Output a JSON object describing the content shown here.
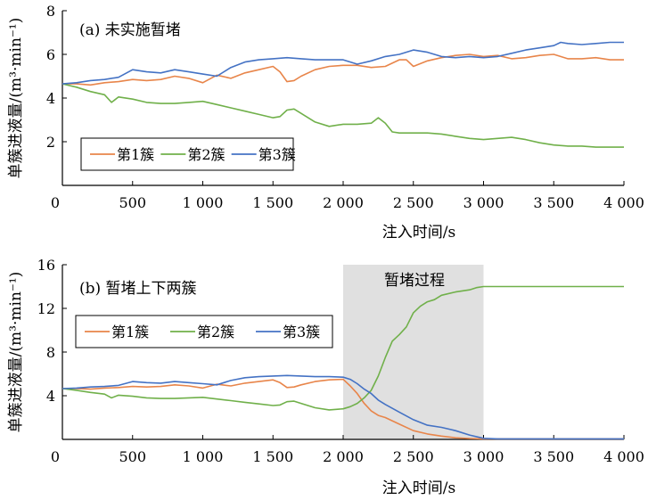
{
  "chart_data": [
    {
      "type": "line",
      "title": "(a) 未实施暂堵",
      "xlabel": "注入时间/s",
      "ylabel": "单簇进液量/(m³·min⁻¹)",
      "xlim": [
        0,
        4000
      ],
      "ylim": [
        0,
        8
      ],
      "xticks": [
        0,
        500,
        1000,
        1500,
        2000,
        2500,
        3000,
        3500,
        4000
      ],
      "xtick_labels": [
        "0",
        "500",
        "1 000",
        "1 500",
        "2 000",
        "2 500",
        "3 000",
        "3 500",
        "4 000"
      ],
      "yticks": [
        0,
        2,
        4,
        6,
        8
      ],
      "ytick_labels": [
        "0",
        "2",
        "4",
        "6",
        "8"
      ],
      "grid": false,
      "legend_position": "bottom-left",
      "colors": {
        "第1簇": "#e8854a",
        "第2簇": "#70b04a",
        "第3簇": "#4472c4"
      },
      "series": [
        {
          "name": "第1簇",
          "x": [
            0,
            100,
            200,
            300,
            400,
            500,
            600,
            700,
            800,
            900,
            1000,
            1100,
            1200,
            1300,
            1400,
            1500,
            1550,
            1600,
            1650,
            1700,
            1800,
            1900,
            2000,
            2100,
            2200,
            2300,
            2400,
            2450,
            2500,
            2600,
            2700,
            2800,
            2900,
            3000,
            3100,
            3200,
            3300,
            3400,
            3500,
            3600,
            3700,
            3800,
            3900,
            4000
          ],
          "y": [
            4.65,
            4.65,
            4.6,
            4.7,
            4.75,
            4.85,
            4.8,
            4.85,
            5.0,
            4.9,
            4.7,
            5.05,
            4.9,
            5.15,
            5.3,
            5.45,
            5.2,
            4.75,
            4.8,
            5.0,
            5.3,
            5.45,
            5.5,
            5.5,
            5.4,
            5.45,
            5.75,
            5.75,
            5.45,
            5.7,
            5.85,
            5.95,
            6.0,
            5.9,
            5.95,
            5.8,
            5.85,
            5.95,
            6.0,
            5.8,
            5.8,
            5.85,
            5.75,
            5.75
          ]
        },
        {
          "name": "第2簇",
          "x": [
            0,
            100,
            200,
            300,
            350,
            400,
            500,
            600,
            700,
            800,
            900,
            1000,
            1100,
            1200,
            1300,
            1400,
            1500,
            1550,
            1600,
            1650,
            1700,
            1800,
            1900,
            2000,
            2100,
            2200,
            2250,
            2300,
            2350,
            2400,
            2500,
            2600,
            2700,
            2800,
            2900,
            3000,
            3100,
            3200,
            3300,
            3400,
            3500,
            3600,
            3700,
            3800,
            3900,
            4000
          ],
          "y": [
            4.65,
            4.5,
            4.3,
            4.15,
            3.8,
            4.05,
            3.95,
            3.8,
            3.75,
            3.75,
            3.8,
            3.85,
            3.7,
            3.55,
            3.4,
            3.25,
            3.1,
            3.15,
            3.45,
            3.5,
            3.3,
            2.9,
            2.7,
            2.8,
            2.8,
            2.85,
            3.1,
            2.85,
            2.45,
            2.4,
            2.4,
            2.4,
            2.35,
            2.25,
            2.15,
            2.1,
            2.15,
            2.2,
            2.1,
            1.95,
            1.85,
            1.8,
            1.8,
            1.75,
            1.75,
            1.75
          ]
        },
        {
          "name": "第3簇",
          "x": [
            0,
            100,
            200,
            300,
            400,
            500,
            600,
            700,
            800,
            900,
            1000,
            1100,
            1200,
            1300,
            1400,
            1500,
            1600,
            1700,
            1800,
            1900,
            2000,
            2100,
            2200,
            2300,
            2400,
            2500,
            2600,
            2700,
            2800,
            2900,
            3000,
            3100,
            3200,
            3300,
            3400,
            3500,
            3550,
            3600,
            3700,
            3800,
            3900,
            4000
          ],
          "y": [
            4.65,
            4.7,
            4.8,
            4.85,
            4.95,
            5.3,
            5.2,
            5.15,
            5.3,
            5.2,
            5.1,
            5.0,
            5.4,
            5.65,
            5.75,
            5.8,
            5.85,
            5.8,
            5.75,
            5.75,
            5.75,
            5.55,
            5.7,
            5.9,
            6.0,
            6.2,
            6.1,
            5.9,
            5.85,
            5.9,
            5.85,
            5.9,
            6.05,
            6.2,
            6.3,
            6.4,
            6.55,
            6.5,
            6.45,
            6.5,
            6.55,
            6.55
          ]
        }
      ]
    },
    {
      "type": "line",
      "title": "(b) 暂堵上下两簇",
      "annotation": "暂堵过程",
      "shaded_range": [
        2000,
        3000
      ],
      "xlabel": "注入时间/s",
      "ylabel": "单簇进液量/(m³·min⁻¹)",
      "xlim": [
        0,
        4000
      ],
      "ylim": [
        0,
        16
      ],
      "xticks": [
        0,
        500,
        1000,
        1500,
        2000,
        2500,
        3000,
        3500,
        4000
      ],
      "xtick_labels": [
        "0",
        "500",
        "1 000",
        "1 500",
        "2 000",
        "2 500",
        "3 000",
        "3 500",
        "4 000"
      ],
      "yticks": [
        0,
        4,
        8,
        12,
        16
      ],
      "ytick_labels": [
        "0",
        "4",
        "8",
        "12",
        "16"
      ],
      "grid": false,
      "legend_position": "top-left",
      "colors": {
        "第1簇": "#e8854a",
        "第2簇": "#70b04a",
        "第3簇": "#4472c4",
        "shade": "#e0e0e0"
      },
      "series": [
        {
          "name": "第1簇",
          "x": [
            0,
            100,
            200,
            300,
            400,
            500,
            600,
            700,
            800,
            900,
            1000,
            1100,
            1200,
            1300,
            1400,
            1500,
            1550,
            1600,
            1650,
            1700,
            1800,
            1900,
            2000,
            2050,
            2100,
            2150,
            2200,
            2250,
            2300,
            2400,
            2500,
            2600,
            2700,
            2800,
            2900,
            3000,
            3100,
            3500,
            4000
          ],
          "y": [
            4.65,
            4.65,
            4.6,
            4.7,
            4.75,
            4.85,
            4.8,
            4.85,
            5.0,
            4.9,
            4.7,
            5.05,
            4.9,
            5.15,
            5.3,
            5.45,
            5.2,
            4.75,
            4.8,
            5.0,
            5.3,
            5.45,
            5.5,
            4.9,
            4.2,
            3.3,
            2.6,
            2.2,
            2.0,
            1.4,
            0.8,
            0.5,
            0.3,
            0.15,
            0.08,
            0.05,
            0.05,
            0.05,
            0.05
          ]
        },
        {
          "name": "第2簇",
          "x": [
            0,
            100,
            200,
            300,
            350,
            400,
            500,
            600,
            700,
            800,
            900,
            1000,
            1100,
            1200,
            1300,
            1400,
            1500,
            1550,
            1600,
            1650,
            1700,
            1800,
            1900,
            2000,
            2050,
            2100,
            2150,
            2200,
            2250,
            2300,
            2350,
            2400,
            2450,
            2500,
            2550,
            2600,
            2650,
            2700,
            2800,
            2900,
            2950,
            3000,
            3500,
            4000
          ],
          "y": [
            4.65,
            4.5,
            4.3,
            4.15,
            3.8,
            4.05,
            3.95,
            3.8,
            3.75,
            3.75,
            3.8,
            3.85,
            3.7,
            3.55,
            3.4,
            3.25,
            3.1,
            3.15,
            3.45,
            3.5,
            3.3,
            2.9,
            2.7,
            2.8,
            3.0,
            3.3,
            3.8,
            4.5,
            5.8,
            7.5,
            9.0,
            9.6,
            10.3,
            11.6,
            12.2,
            12.6,
            12.8,
            13.2,
            13.5,
            13.7,
            13.9,
            14.0,
            14.0,
            14.0
          ]
        },
        {
          "name": "第3簇",
          "x": [
            0,
            100,
            200,
            300,
            400,
            500,
            600,
            700,
            800,
            900,
            1000,
            1100,
            1200,
            1300,
            1400,
            1500,
            1600,
            1700,
            1800,
            1900,
            2000,
            2050,
            2100,
            2150,
            2200,
            2250,
            2300,
            2400,
            2500,
            2600,
            2700,
            2800,
            2900,
            3000,
            3100,
            3500,
            4000
          ],
          "y": [
            4.65,
            4.7,
            4.8,
            4.85,
            4.95,
            5.3,
            5.2,
            5.15,
            5.3,
            5.2,
            5.1,
            5.0,
            5.4,
            5.65,
            5.75,
            5.8,
            5.85,
            5.8,
            5.75,
            5.75,
            5.7,
            5.5,
            5.1,
            4.6,
            4.2,
            3.6,
            3.2,
            2.5,
            1.8,
            1.3,
            1.1,
            0.8,
            0.4,
            0.1,
            0.05,
            0.05,
            0.05
          ]
        }
      ]
    }
  ]
}
